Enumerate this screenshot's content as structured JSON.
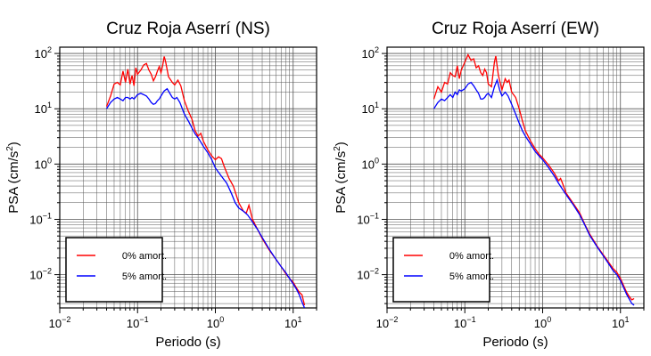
{
  "chart_data": [
    {
      "type": "line",
      "title": "Cruz Roja Aserrí (NS)",
      "xlabel": "Periodo (s)",
      "ylabel": "PSA (cm/s²)",
      "ylabel_parts": {
        "base": "PSA (cm/s",
        "sup": "2",
        "tail": ")"
      },
      "xscale": "log",
      "yscale": "log",
      "xlim": [
        0.01,
        20
      ],
      "ylim": [
        0.0025,
        130
      ],
      "grid": true,
      "legend_position": "bottom-left",
      "x_ticks": [
        {
          "base": "10",
          "exp": "−2",
          "value": 0.01
        },
        {
          "base": "10",
          "exp": "−1",
          "value": 0.1
        },
        {
          "base": "10",
          "exp": "0",
          "value": 1
        },
        {
          "base": "10",
          "exp": "1",
          "value": 10
        }
      ],
      "y_ticks": [
        {
          "base": "10",
          "exp": "−2",
          "value": 0.01
        },
        {
          "base": "10",
          "exp": "−1",
          "value": 0.1
        },
        {
          "base": "10",
          "exp": "0",
          "value": 1
        },
        {
          "base": "10",
          "exp": "1",
          "value": 10
        },
        {
          "base": "10",
          "exp": "2",
          "value": 100
        }
      ],
      "series": [
        {
          "name": "0% amort.",
          "color": "#ff0000",
          "points": [
            [
              0.04,
              11
            ],
            [
              0.045,
              17
            ],
            [
              0.05,
              28
            ],
            [
              0.055,
              30
            ],
            [
              0.06,
              27
            ],
            [
              0.065,
              48
            ],
            [
              0.07,
              30
            ],
            [
              0.075,
              52
            ],
            [
              0.08,
              28
            ],
            [
              0.085,
              40
            ],
            [
              0.09,
              26
            ],
            [
              0.095,
              55
            ],
            [
              0.1,
              42
            ],
            [
              0.11,
              50
            ],
            [
              0.12,
              62
            ],
            [
              0.13,
              66
            ],
            [
              0.14,
              50
            ],
            [
              0.15,
              42
            ],
            [
              0.16,
              32
            ],
            [
              0.17,
              38
            ],
            [
              0.18,
              48
            ],
            [
              0.19,
              58
            ],
            [
              0.2,
              45
            ],
            [
              0.21,
              60
            ],
            [
              0.22,
              88
            ],
            [
              0.23,
              70
            ],
            [
              0.25,
              38
            ],
            [
              0.28,
              30
            ],
            [
              0.3,
              27
            ],
            [
              0.33,
              33
            ],
            [
              0.36,
              26
            ],
            [
              0.4,
              14
            ],
            [
              0.45,
              9
            ],
            [
              0.5,
              6.5
            ],
            [
              0.55,
              4
            ],
            [
              0.6,
              3.2
            ],
            [
              0.65,
              3.6
            ],
            [
              0.7,
              2.6
            ],
            [
              0.8,
              1.8
            ],
            [
              0.9,
              1.4
            ],
            [
              1.0,
              1.2
            ],
            [
              1.1,
              1.35
            ],
            [
              1.2,
              1.25
            ],
            [
              1.3,
              0.9
            ],
            [
              1.5,
              0.55
            ],
            [
              1.7,
              0.4
            ],
            [
              2.0,
              0.2
            ],
            [
              2.3,
              0.14
            ],
            [
              2.5,
              0.13
            ],
            [
              2.7,
              0.18
            ],
            [
              3.0,
              0.1
            ],
            [
              3.5,
              0.065
            ],
            [
              4.0,
              0.045
            ],
            [
              5.0,
              0.027
            ],
            [
              6.0,
              0.019
            ],
            [
              7.0,
              0.014
            ],
            [
              8.0,
              0.0105
            ],
            [
              9.0,
              0.0085
            ],
            [
              10.0,
              0.0073
            ],
            [
              11.0,
              0.0058
            ],
            [
              12.0,
              0.0048
            ],
            [
              13.0,
              0.0043
            ],
            [
              14.0,
              0.0028
            ]
          ]
        },
        {
          "name": "5% amort.",
          "color": "#0000ff",
          "points": [
            [
              0.04,
              10
            ],
            [
              0.045,
              13
            ],
            [
              0.05,
              15
            ],
            [
              0.055,
              16
            ],
            [
              0.06,
              15
            ],
            [
              0.065,
              14
            ],
            [
              0.07,
              16
            ],
            [
              0.075,
              16
            ],
            [
              0.08,
              15
            ],
            [
              0.085,
              16
            ],
            [
              0.09,
              15
            ],
            [
              0.1,
              18
            ],
            [
              0.11,
              19
            ],
            [
              0.12,
              18
            ],
            [
              0.13,
              17
            ],
            [
              0.14,
              15
            ],
            [
              0.15,
              13
            ],
            [
              0.16,
              12
            ],
            [
              0.17,
              12.5
            ],
            [
              0.18,
              14
            ],
            [
              0.19,
              15
            ],
            [
              0.2,
              17
            ],
            [
              0.22,
              21
            ],
            [
              0.24,
              23
            ],
            [
              0.26,
              19
            ],
            [
              0.28,
              16
            ],
            [
              0.3,
              15
            ],
            [
              0.32,
              16
            ],
            [
              0.35,
              13
            ],
            [
              0.4,
              8
            ],
            [
              0.45,
              6
            ],
            [
              0.5,
              4.5
            ],
            [
              0.55,
              3.5
            ],
            [
              0.6,
              3.0
            ],
            [
              0.7,
              2.1
            ],
            [
              0.8,
              1.6
            ],
            [
              0.9,
              1.2
            ],
            [
              1.0,
              0.85
            ],
            [
              1.2,
              0.6
            ],
            [
              1.4,
              0.45
            ],
            [
              1.6,
              0.3
            ],
            [
              1.8,
              0.2
            ],
            [
              2.0,
              0.16
            ],
            [
              2.3,
              0.14
            ],
            [
              2.6,
              0.12
            ],
            [
              3.0,
              0.09
            ],
            [
              3.5,
              0.065
            ],
            [
              4.0,
              0.047
            ],
            [
              5.0,
              0.028
            ],
            [
              6.0,
              0.019
            ],
            [
              7.0,
              0.014
            ],
            [
              8.0,
              0.011
            ],
            [
              9.0,
              0.0085
            ],
            [
              10.0,
              0.0068
            ],
            [
              11.0,
              0.0055
            ],
            [
              12.0,
              0.0043
            ],
            [
              13.0,
              0.0032
            ],
            [
              14.0,
              0.0025
            ]
          ]
        }
      ]
    },
    {
      "type": "line",
      "title": "Cruz Roja Aserrí (EW)",
      "xlabel": "Periodo (s)",
      "ylabel": "PSA (cm/s²)",
      "ylabel_parts": {
        "base": "PSA (cm/s",
        "sup": "2",
        "tail": ")"
      },
      "xscale": "log",
      "yscale": "log",
      "xlim": [
        0.01,
        20
      ],
      "ylim": [
        0.0025,
        130
      ],
      "grid": true,
      "legend_position": "bottom-left",
      "x_ticks": [
        {
          "base": "10",
          "exp": "−2",
          "value": 0.01
        },
        {
          "base": "10",
          "exp": "−1",
          "value": 0.1
        },
        {
          "base": "10",
          "exp": "0",
          "value": 1
        },
        {
          "base": "10",
          "exp": "1",
          "value": 10
        }
      ],
      "y_ticks": [
        {
          "base": "10",
          "exp": "−2",
          "value": 0.01
        },
        {
          "base": "10",
          "exp": "−1",
          "value": 0.1
        },
        {
          "base": "10",
          "exp": "0",
          "value": 1
        },
        {
          "base": "10",
          "exp": "1",
          "value": 10
        },
        {
          "base": "10",
          "exp": "2",
          "value": 100
        }
      ],
      "series": [
        {
          "name": "0% amort.",
          "color": "#ff0000",
          "points": [
            [
              0.04,
              15
            ],
            [
              0.045,
              25
            ],
            [
              0.05,
              20
            ],
            [
              0.055,
              30
            ],
            [
              0.06,
              28
            ],
            [
              0.065,
              45
            ],
            [
              0.07,
              40
            ],
            [
              0.075,
              38
            ],
            [
              0.08,
              60
            ],
            [
              0.085,
              35
            ],
            [
              0.09,
              50
            ],
            [
              0.1,
              70
            ],
            [
              0.11,
              95
            ],
            [
              0.12,
              75
            ],
            [
              0.13,
              80
            ],
            [
              0.14,
              55
            ],
            [
              0.15,
              60
            ],
            [
              0.16,
              45
            ],
            [
              0.17,
              40
            ],
            [
              0.18,
              52
            ],
            [
              0.19,
              45
            ],
            [
              0.2,
              28
            ],
            [
              0.22,
              25
            ],
            [
              0.24,
              70
            ],
            [
              0.25,
              90
            ],
            [
              0.27,
              40
            ],
            [
              0.3,
              22
            ],
            [
              0.33,
              35
            ],
            [
              0.35,
              30
            ],
            [
              0.37,
              33
            ],
            [
              0.4,
              20
            ],
            [
              0.45,
              16
            ],
            [
              0.5,
              10
            ],
            [
              0.55,
              6
            ],
            [
              0.6,
              4
            ],
            [
              0.7,
              2.6
            ],
            [
              0.8,
              1.9
            ],
            [
              0.9,
              1.5
            ],
            [
              1.0,
              1.3
            ],
            [
              1.2,
              0.95
            ],
            [
              1.4,
              0.7
            ],
            [
              1.6,
              0.5
            ],
            [
              1.7,
              0.55
            ],
            [
              1.8,
              0.45
            ],
            [
              2.0,
              0.3
            ],
            [
              2.5,
              0.19
            ],
            [
              3.0,
              0.13
            ],
            [
              3.5,
              0.08
            ],
            [
              4.0,
              0.055
            ],
            [
              5.0,
              0.033
            ],
            [
              6.0,
              0.023
            ],
            [
              7.0,
              0.017
            ],
            [
              8.0,
              0.013
            ],
            [
              9.0,
              0.011
            ],
            [
              10.0,
              0.0085
            ],
            [
              11.0,
              0.0063
            ],
            [
              12.0,
              0.0048
            ],
            [
              13.0,
              0.004
            ],
            [
              14.0,
              0.0035
            ],
            [
              15.0,
              0.0037
            ]
          ]
        },
        {
          "name": "5% amort.",
          "color": "#0000ff",
          "points": [
            [
              0.04,
              10
            ],
            [
              0.045,
              13
            ],
            [
              0.05,
              15
            ],
            [
              0.055,
              14
            ],
            [
              0.06,
              16
            ],
            [
              0.065,
              18
            ],
            [
              0.07,
              16
            ],
            [
              0.075,
              20
            ],
            [
              0.08,
              18
            ],
            [
              0.085,
              22
            ],
            [
              0.09,
              21
            ],
            [
              0.1,
              23
            ],
            [
              0.11,
              28
            ],
            [
              0.12,
              30
            ],
            [
              0.13,
              26
            ],
            [
              0.14,
              22
            ],
            [
              0.15,
              19
            ],
            [
              0.16,
              15
            ],
            [
              0.17,
              15
            ],
            [
              0.18,
              16
            ],
            [
              0.19,
              18
            ],
            [
              0.2,
              19
            ],
            [
              0.22,
              16
            ],
            [
              0.24,
              25
            ],
            [
              0.26,
              33
            ],
            [
              0.28,
              22
            ],
            [
              0.3,
              17
            ],
            [
              0.33,
              20
            ],
            [
              0.36,
              17
            ],
            [
              0.4,
              12
            ],
            [
              0.45,
              8
            ],
            [
              0.5,
              5.5
            ],
            [
              0.55,
              4
            ],
            [
              0.6,
              3.2
            ],
            [
              0.7,
              2.3
            ],
            [
              0.8,
              1.7
            ],
            [
              0.9,
              1.4
            ],
            [
              1.0,
              1.2
            ],
            [
              1.2,
              0.85
            ],
            [
              1.4,
              0.62
            ],
            [
              1.6,
              0.45
            ],
            [
              1.8,
              0.35
            ],
            [
              2.0,
              0.28
            ],
            [
              2.5,
              0.18
            ],
            [
              3.0,
              0.12
            ],
            [
              3.5,
              0.078
            ],
            [
              4.0,
              0.052
            ],
            [
              5.0,
              0.032
            ],
            [
              6.0,
              0.022
            ],
            [
              7.0,
              0.016
            ],
            [
              8.0,
              0.012
            ],
            [
              9.0,
              0.01
            ],
            [
              10.0,
              0.0078
            ],
            [
              11.0,
              0.0058
            ],
            [
              12.0,
              0.0044
            ],
            [
              13.0,
              0.0036
            ],
            [
              14.0,
              0.003
            ],
            [
              15.0,
              0.0028
            ]
          ]
        }
      ]
    }
  ]
}
